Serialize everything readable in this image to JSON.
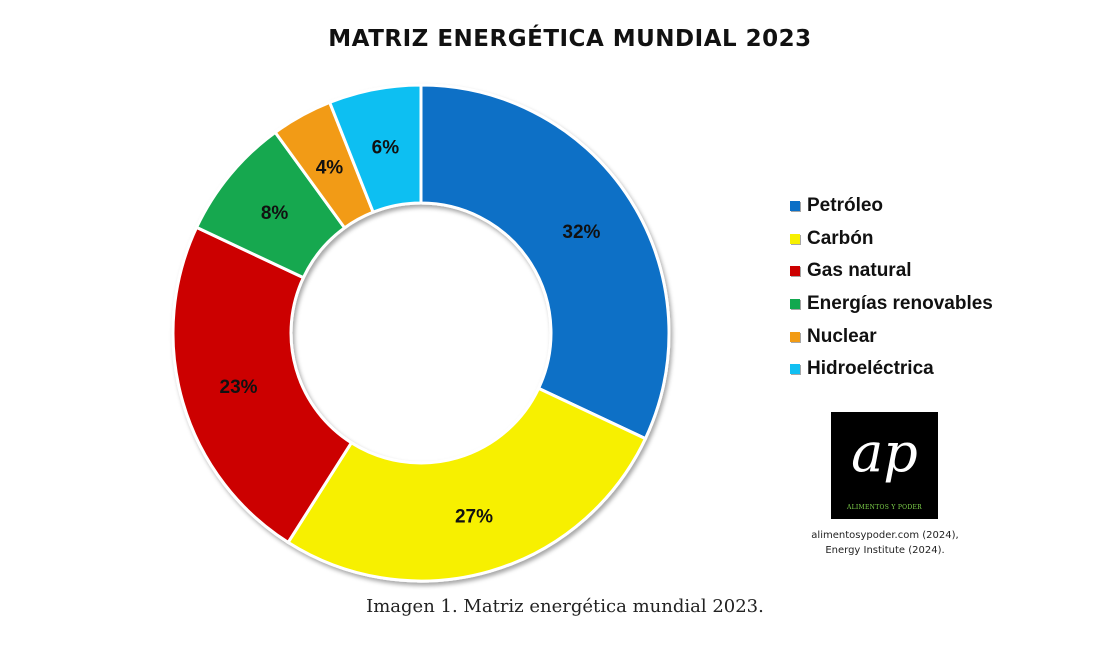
{
  "title": "MATRIZ ENERGÉTICA MUNDIAL 2023",
  "chart_data": {
    "type": "pie",
    "style": "donut",
    "title": "MATRIZ ENERGÉTICA MUNDIAL 2023",
    "legend_position": "right",
    "slices": [
      {
        "name": "Petróleo",
        "value": 32,
        "label": "32%",
        "color": "#0B6FC6"
      },
      {
        "name": "Carbón",
        "value": 27,
        "label": "27%",
        "color": "#F7F000"
      },
      {
        "name": "Gas natural",
        "value": 23,
        "label": "23%",
        "color": "#CC0000"
      },
      {
        "name": "Energías renovables",
        "value": 8,
        "label": "8%",
        "color": "#12A84F"
      },
      {
        "name": "Nuclear",
        "value": 4,
        "label": "4%",
        "color": "#F29B14"
      },
      {
        "name": "Hidroeléctrica",
        "value": 6,
        "label": "6%",
        "color": "#11BFF2"
      }
    ]
  },
  "logo": {
    "mark": "ap",
    "text": "ALIMENTOS Y PODER"
  },
  "source": {
    "line1": "alimentosypoder.com (2024),",
    "line2": "Energy Institute (2024)."
  },
  "caption": "Imagen 1. Matriz energética mundial 2023."
}
